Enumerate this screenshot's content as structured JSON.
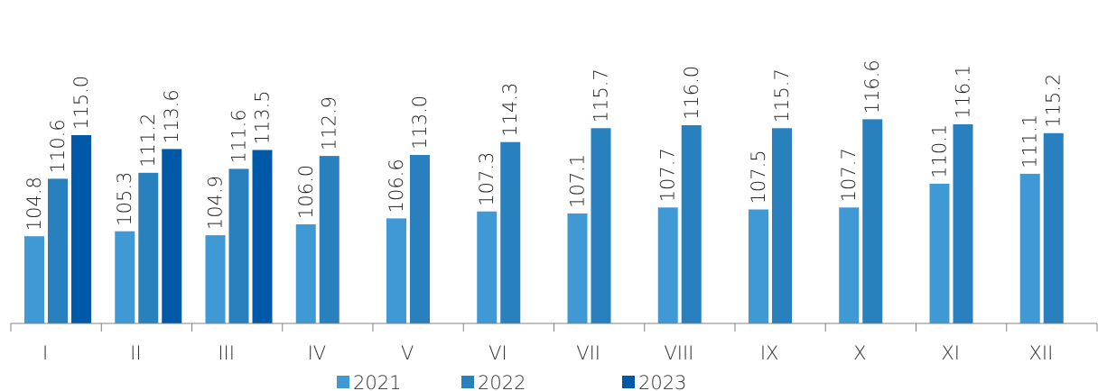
{
  "chart_data": {
    "type": "bar",
    "categories": [
      "I",
      "II",
      "III",
      "IV",
      "V",
      "VI",
      "VII",
      "VIII",
      "IX",
      "X",
      "XI",
      "XII"
    ],
    "series": [
      {
        "name": "2021",
        "color": "#3e99d5",
        "values": [
          104.8,
          105.3,
          104.9,
          106.0,
          106.6,
          107.3,
          107.1,
          107.7,
          107.5,
          107.7,
          110.1,
          111.1
        ]
      },
      {
        "name": "2022",
        "color": "#2980bf",
        "values": [
          110.6,
          111.2,
          111.6,
          112.9,
          113.0,
          114.3,
          115.7,
          116.0,
          115.7,
          116.6,
          116.1,
          115.2
        ]
      },
      {
        "name": "2023",
        "color": "#0058a8",
        "values": [
          115.0,
          113.6,
          113.5,
          null,
          null,
          null,
          null,
          null,
          null,
          null,
          null,
          null
        ]
      }
    ],
    "value_labels": [
      [
        "104.8",
        "105.3",
        "104.9",
        "106.0",
        "106.6",
        "107.3",
        "107.1",
        "107.7",
        "107.5",
        "107.7",
        "110.1",
        "111.1"
      ],
      [
        "110.6",
        "111.2",
        "111.6",
        "112.9",
        "113.0",
        "114.3",
        "115.7",
        "116.0",
        "115.7",
        "116.6",
        "116.1",
        "115.2"
      ],
      [
        "115.0",
        "113.6",
        "113.5",
        null,
        null,
        null,
        null,
        null,
        null,
        null,
        null,
        null
      ]
    ],
    "ylim": [
      96,
      119
    ],
    "grid": false,
    "legend_position": "bottom-center",
    "axis_color": "#808080"
  }
}
